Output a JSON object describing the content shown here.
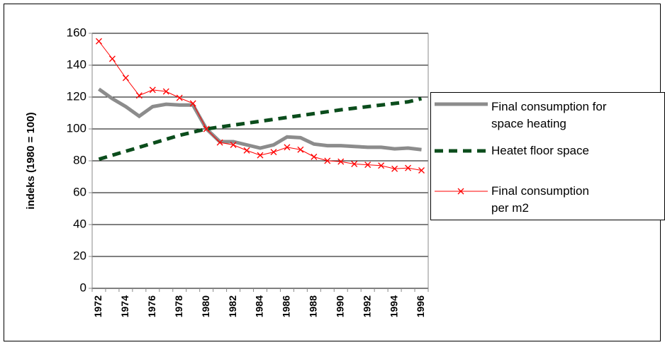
{
  "chart_data": {
    "type": "line",
    "x": [
      1972,
      1973,
      1974,
      1975,
      1976,
      1977,
      1978,
      1979,
      1980,
      1981,
      1982,
      1983,
      1984,
      1985,
      1986,
      1987,
      1988,
      1989,
      1990,
      1991,
      1992,
      1993,
      1994,
      1995,
      1996
    ],
    "xticks": [
      1972,
      1974,
      1976,
      1978,
      1980,
      1982,
      1984,
      1986,
      1988,
      1990,
      1992,
      1994,
      1996
    ],
    "ylabel": "indeks (1980 = 100)",
    "ylim": [
      0,
      160
    ],
    "yticks": [
      0,
      20,
      40,
      60,
      80,
      100,
      120,
      140,
      160
    ],
    "grid": true,
    "series": [
      {
        "name": "Final consumption for space heating",
        "color": "#8c8c8c",
        "style": "solid",
        "values": [
          125,
          119,
          114,
          108,
          114,
          115.5,
          115,
          115,
          100,
          92,
          92,
          90,
          88,
          90,
          95,
          94.5,
          90.5,
          89.5,
          89.5,
          89,
          88.5,
          88.5,
          87.5,
          88,
          87
        ]
      },
      {
        "name": "Heatet floor space",
        "color": "#0b4d1c",
        "style": "dashed",
        "values": [
          81,
          83.5,
          86,
          88.5,
          91,
          93.5,
          96,
          98,
          100,
          101.2,
          102.4,
          103.6,
          104.8,
          106,
          107.2,
          108.4,
          109.6,
          110.8,
          112,
          113,
          114,
          115,
          116,
          117,
          119
        ]
      },
      {
        "name": "Final consumption per m2",
        "color": "#ff0000",
        "style": "marker",
        "values": [
          155,
          144,
          132,
          121,
          124.5,
          123.5,
          119.5,
          116,
          100,
          91.5,
          90,
          86.5,
          83.5,
          85.5,
          88.5,
          87,
          82.5,
          80,
          79.5,
          78,
          77.5,
          77,
          75,
          75.5,
          74
        ]
      }
    ]
  }
}
